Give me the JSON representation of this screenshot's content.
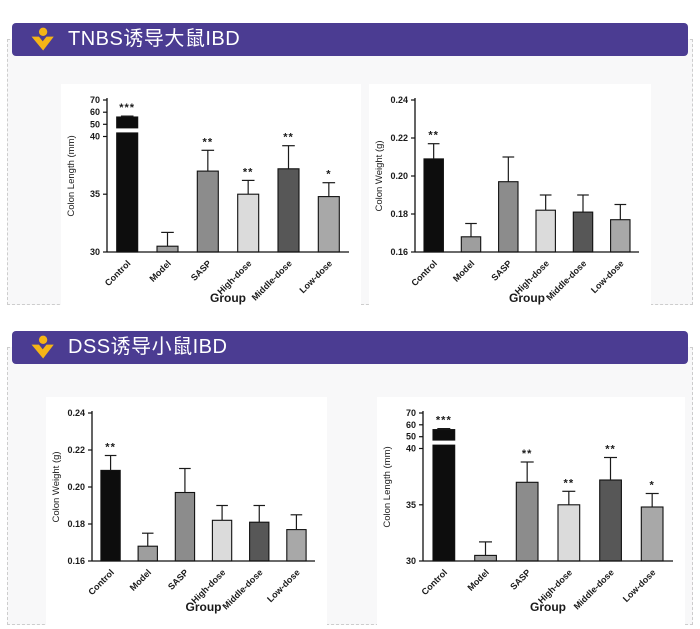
{
  "theme": {
    "header_bg": "#4b3c92",
    "header_text_color": "#ffffff",
    "icon_color": "#f5b516",
    "panel_bg": "#f8f8f9",
    "panel_border": "#cdcdcd",
    "chart_bg": "#ffffff",
    "axis_color": "#111111",
    "bar_palette": [
      "#0d0d0d",
      "#9e9e9e",
      "#8c8c8c",
      "#dbdbdb",
      "#575757",
      "#a8a8a8"
    ]
  },
  "sections": [
    {
      "title": "TNBS诱导大鼠IBD"
    },
    {
      "title": "DSS诱导小鼠IBD"
    }
  ],
  "chart_data": [
    {
      "type": "bar",
      "title": "",
      "ylabel": "Colon Length (mm)",
      "xlabel": "Group",
      "categories": [
        "Control",
        "Model",
        "SASP",
        "High-dose",
        "Middle-dose",
        "Low-dose"
      ],
      "values": [
        56,
        30.5,
        37,
        35,
        37.2,
        34.8
      ],
      "errors": [
        0.8,
        1.2,
        1.8,
        1.2,
        2.0,
        1.2
      ],
      "significance": [
        "***",
        "",
        "**",
        "**",
        "**",
        "*"
      ],
      "bar_colors": [
        "#0d0d0d",
        "#9e9e9e",
        "#8c8c8c",
        "#dbdbdb",
        "#575757",
        "#a8a8a8"
      ],
      "axis": {
        "type": "broken",
        "ymin": 30,
        "break_at": 40,
        "ymax": 70,
        "ticks": [
          30,
          35,
          40,
          50,
          60,
          70
        ],
        "tick_decimals": 0
      },
      "legend": "none",
      "grid": false
    },
    {
      "type": "bar",
      "title": "",
      "ylabel": "Colon Weight (g)",
      "xlabel": "Group",
      "categories": [
        "Control",
        "Model",
        "SASP",
        "High-dose",
        "Middle-dose",
        "Low-dose"
      ],
      "values": [
        0.209,
        0.168,
        0.197,
        0.182,
        0.181,
        0.177
      ],
      "errors": [
        0.008,
        0.007,
        0.013,
        0.008,
        0.009,
        0.008
      ],
      "significance": [
        "**",
        "",
        "",
        "",
        "",
        ""
      ],
      "bar_colors": [
        "#0d0d0d",
        "#9e9e9e",
        "#8c8c8c",
        "#dbdbdb",
        "#575757",
        "#a8a8a8"
      ],
      "axis": {
        "type": "linear",
        "ymin": 0.16,
        "ymax": 0.24,
        "ticks": [
          0.16,
          0.18,
          0.2,
          0.22,
          0.24
        ],
        "tick_decimals": 2
      },
      "legend": "none",
      "grid": false
    },
    {
      "type": "bar",
      "title": "",
      "ylabel": "Colon Weight (g)",
      "xlabel": "Group",
      "categories": [
        "Control",
        "Model",
        "SASP",
        "High-dose",
        "Middle-dose",
        "Low-dose"
      ],
      "values": [
        0.209,
        0.168,
        0.197,
        0.182,
        0.181,
        0.177
      ],
      "errors": [
        0.008,
        0.007,
        0.013,
        0.008,
        0.009,
        0.008
      ],
      "significance": [
        "**",
        "",
        "",
        "",
        "",
        ""
      ],
      "bar_colors": [
        "#0d0d0d",
        "#9e9e9e",
        "#8c8c8c",
        "#dbdbdb",
        "#575757",
        "#a8a8a8"
      ],
      "axis": {
        "type": "linear",
        "ymin": 0.16,
        "ymax": 0.24,
        "ticks": [
          0.16,
          0.18,
          0.2,
          0.22,
          0.24
        ],
        "tick_decimals": 2
      },
      "legend": "none",
      "grid": false
    },
    {
      "type": "bar",
      "title": "",
      "ylabel": "Colon Length (mm)",
      "xlabel": "Group",
      "categories": [
        "Control",
        "Model",
        "SASP",
        "High-dose",
        "Middle-dose",
        "Low-dose"
      ],
      "values": [
        56,
        30.5,
        37,
        35,
        37.2,
        34.8
      ],
      "errors": [
        0.8,
        1.2,
        1.8,
        1.2,
        2.0,
        1.2
      ],
      "significance": [
        "***",
        "",
        "**",
        "**",
        "**",
        "*"
      ],
      "bar_colors": [
        "#0d0d0d",
        "#9e9e9e",
        "#8c8c8c",
        "#dbdbdb",
        "#575757",
        "#a8a8a8"
      ],
      "axis": {
        "type": "broken",
        "ymin": 30,
        "break_at": 40,
        "ymax": 70,
        "ticks": [
          30,
          35,
          40,
          50,
          60,
          70
        ],
        "tick_decimals": 0
      },
      "legend": "none",
      "grid": false
    }
  ]
}
